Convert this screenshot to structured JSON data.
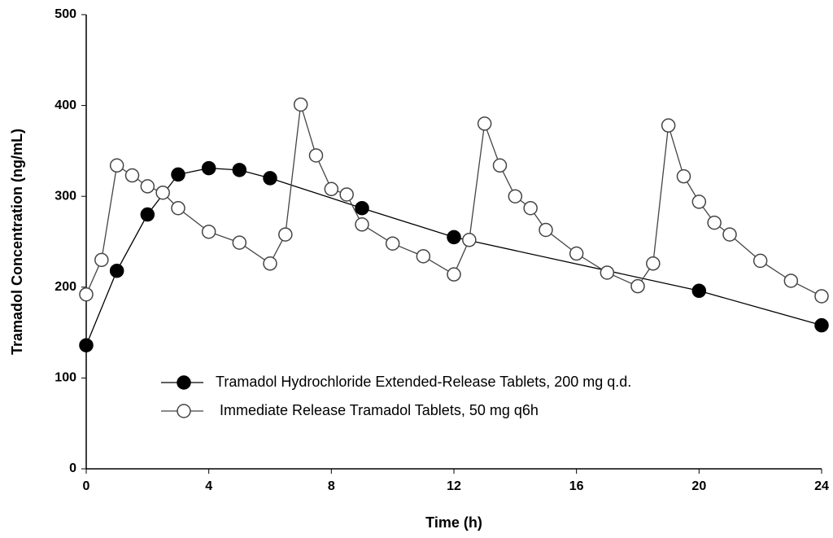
{
  "chart_data": {
    "type": "line",
    "x_label": "Time (h)",
    "y_label": "Tramadol Concentration (ng/mL)",
    "xlim": [
      0,
      24
    ],
    "xticks": [
      0,
      4,
      8,
      12,
      16,
      20,
      24
    ],
    "ylim": [
      0,
      500
    ],
    "yticks": [
      0,
      100,
      200,
      300,
      400,
      500
    ],
    "grid": false,
    "legend": "center",
    "series": [
      {
        "name": "Tramadol Hydrochloride Extended-Release Tablets, 200 mg q.d.",
        "color": "#000000",
        "marker": "filled",
        "x": [
          0,
          1,
          2,
          3,
          4,
          5,
          6,
          9,
          12,
          20,
          24
        ],
        "values": [
          136,
          218,
          280,
          324,
          331,
          329,
          320,
          287,
          255,
          196,
          158
        ]
      },
      {
        "name": "Immediate Release Tramadol Tablets, 50 mg q6h",
        "color": "#444444",
        "marker": "open",
        "x": [
          0,
          0.5,
          1,
          1.5,
          2,
          2.5,
          3,
          4,
          5,
          6,
          6.5,
          7,
          7.5,
          8,
          8.5,
          9,
          10,
          11,
          12,
          12.5,
          13,
          13.5,
          14,
          14.5,
          15,
          16,
          17,
          18,
          18.5,
          19,
          19.5,
          20,
          20.5,
          21,
          22,
          23,
          24
        ],
        "values": [
          192,
          230,
          334,
          323,
          311,
          304,
          287,
          261,
          249,
          226,
          258,
          401,
          345,
          308,
          302,
          269,
          248,
          234,
          214,
          252,
          380,
          334,
          300,
          287,
          263,
          237,
          216,
          201,
          226,
          378,
          322,
          294,
          271,
          258,
          229,
          207,
          190
        ]
      }
    ]
  }
}
